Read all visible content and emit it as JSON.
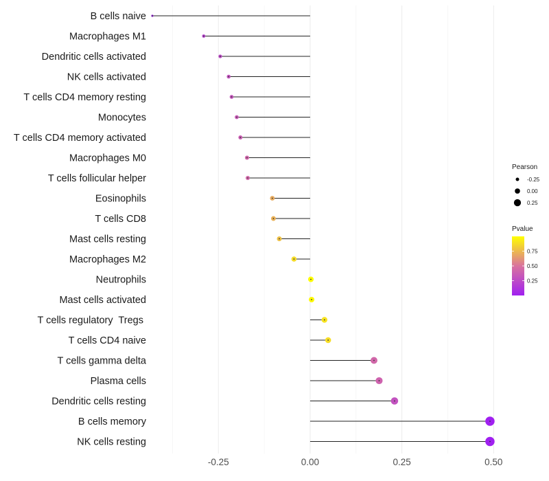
{
  "chart_data": {
    "type": "lollipop",
    "title": "",
    "xlabel": "",
    "ylabel": "",
    "xlim": [
      -0.43,
      0.52
    ],
    "x_ticks": [
      -0.25,
      0.0,
      0.25,
      0.5
    ],
    "x_tick_labels": [
      "-0.25",
      "0.00",
      "0.25",
      "0.50"
    ],
    "grid": true,
    "categories": [
      "B cells naive",
      "Macrophages M1",
      "Dendritic cells activated",
      "NK cells activated",
      "T cells CD4 memory resting",
      "Monocytes",
      "T cells CD4 memory activated",
      "Macrophages M0",
      "T cells follicular helper",
      "Eosinophils",
      "T cells CD8",
      "Mast cells resting",
      "Macrophages M2",
      "Neutrophils",
      "Mast cells activated",
      "T cells regulatory  Tregs ",
      "T cells CD4 naive",
      "T cells gamma delta",
      "Plasma cells",
      "Dendritic cells resting",
      "B cells memory",
      "NK cells resting"
    ],
    "pearson": [
      -0.43,
      -0.29,
      -0.245,
      -0.222,
      -0.214,
      -0.2,
      -0.19,
      -0.172,
      -0.17,
      -0.103,
      -0.1,
      -0.084,
      -0.044,
      0.002,
      0.004,
      0.039,
      0.049,
      0.174,
      0.188,
      0.23,
      0.49,
      0.49
    ],
    "pvalue": [
      0.02,
      0.2,
      0.25,
      0.3,
      0.32,
      0.35,
      0.37,
      0.42,
      0.43,
      0.7,
      0.72,
      0.78,
      0.87,
      0.99,
      0.98,
      0.9,
      0.88,
      0.43,
      0.4,
      0.3,
      0.0,
      0.0
    ],
    "legend": {
      "position": "right",
      "size_title": "Pearson",
      "size_labels": [
        "-0.25",
        "0.00",
        "0.25"
      ],
      "color_title": "Pvalue",
      "color_labels": [
        "0.75",
        "0.50",
        "0.25"
      ],
      "color_values": [
        0.75,
        0.5,
        0.25
      ],
      "color_range": [
        0.0,
        1.0
      ],
      "color_low": "#A020F0",
      "color_mid": "#D9739E",
      "color_high": "#FFFF00"
    }
  }
}
